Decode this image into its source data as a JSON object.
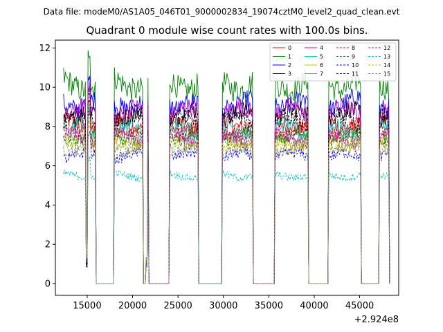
{
  "suptitle": "Data file: modeM0/AS1A05_046T01_9000002834_19074cztM0_level2_quad_clean.evt",
  "chart_data": {
    "type": "line",
    "title": "Quadrant 0 module wise count rates with 100.0s bins.",
    "xlabel": "",
    "ylabel": "",
    "x_offset_label": "+2.924e8",
    "xlim": [
      11500,
      49300
    ],
    "ylim": [
      -0.6,
      12.4
    ],
    "x_ticks": [
      15000,
      20000,
      25000,
      30000,
      35000,
      40000,
      45000
    ],
    "x_tick_labels": [
      "15000",
      "20000",
      "25000",
      "30000",
      "35000",
      "40000",
      "45000"
    ],
    "y_ticks": [
      0,
      2,
      4,
      6,
      8,
      10,
      12
    ],
    "y_tick_labels": [
      "0",
      "2",
      "4",
      "6",
      "8",
      "10",
      "12"
    ],
    "legend_position": "top-right",
    "bin_seconds": 100,
    "orbit_segments": [
      {
        "start": 12400,
        "end": 15200,
        "dip_at": 15000
      },
      {
        "start": 15300,
        "end": 15900
      },
      {
        "start": 18000,
        "end": 21100
      },
      {
        "start": 21500,
        "end": 21700
      },
      {
        "start": 24100,
        "end": 27200
      },
      {
        "start": 29900,
        "end": 33200
      },
      {
        "start": 35700,
        "end": 39300
      },
      {
        "start": 41600,
        "end": 45100
      },
      {
        "start": 47200,
        "end": 48200
      }
    ],
    "series": [
      {
        "name": "0",
        "level": 8.1,
        "color": "#ff0000",
        "dash": "solid"
      },
      {
        "name": "1",
        "level": 10.2,
        "color": "#008000",
        "dash": "solid"
      },
      {
        "name": "2",
        "level": 9.2,
        "color": "#0000ff",
        "dash": "solid"
      },
      {
        "name": "3",
        "level": 8.6,
        "color": "#000000",
        "dash": "solid"
      },
      {
        "name": "4",
        "level": 8.7,
        "color": "#bf00bf",
        "dash": "solid"
      },
      {
        "name": "5",
        "level": 7.8,
        "color": "#00bfbf",
        "dash": "solid"
      },
      {
        "name": "6",
        "level": 7.2,
        "color": "#bfbf00",
        "dash": "solid"
      },
      {
        "name": "7",
        "level": 7.6,
        "color": "#808080",
        "dash": "solid"
      },
      {
        "name": "8",
        "level": 7.9,
        "color": "#ff0000",
        "dash": "dashed"
      },
      {
        "name": "9",
        "level": 7.5,
        "color": "#008000",
        "dash": "dashed"
      },
      {
        "name": "10",
        "level": 6.5,
        "color": "#0000ff",
        "dash": "dashed"
      },
      {
        "name": "11",
        "level": 8.3,
        "color": "#000000",
        "dash": "dashed"
      },
      {
        "name": "12",
        "level": 7.4,
        "color": "#bf00bf",
        "dash": "dashed"
      },
      {
        "name": "13",
        "level": 5.5,
        "color": "#00bfbf",
        "dash": "dashed"
      },
      {
        "name": "14",
        "level": 7.1,
        "color": "#bfbf00",
        "dash": "dashed"
      },
      {
        "name": "15",
        "level": 6.9,
        "color": "#808080",
        "dash": "dashed"
      }
    ]
  }
}
